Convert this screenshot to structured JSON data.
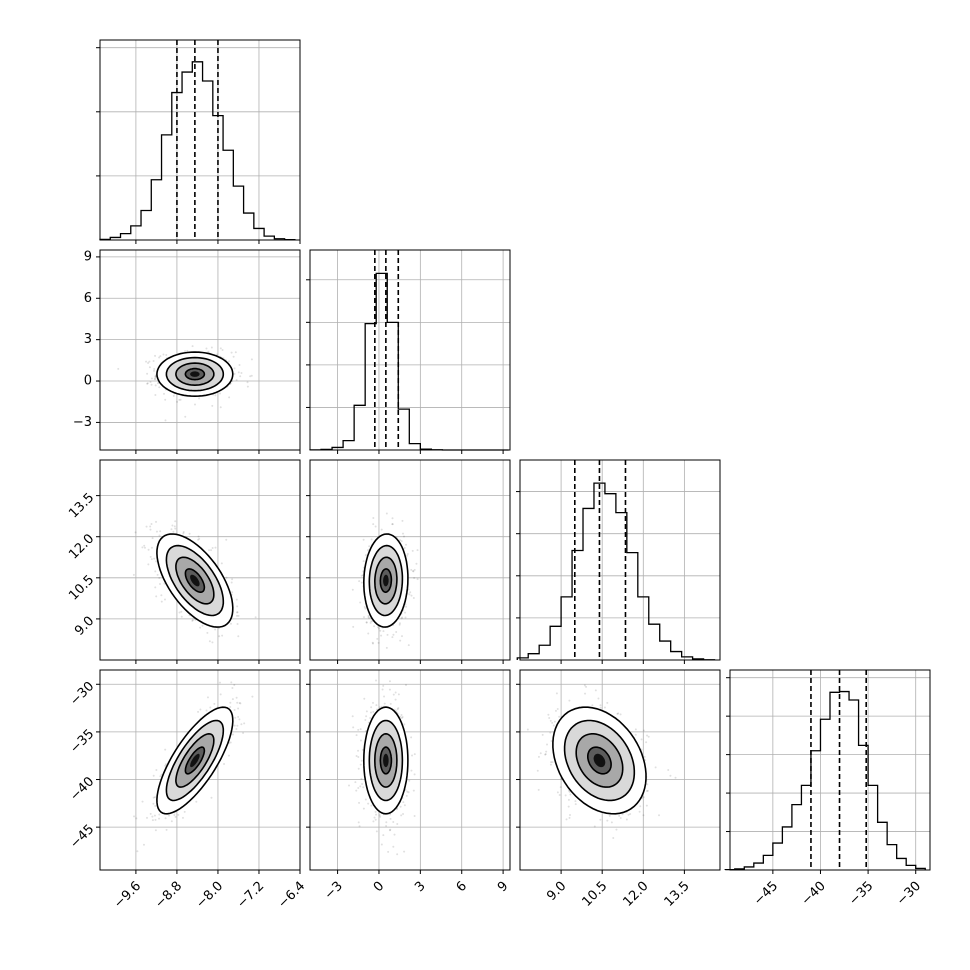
{
  "chart_data": {
    "type": "corner",
    "description_none": "",
    "params": [
      {
        "id": "p0",
        "range": [
          -10.3,
          -6.4
        ],
        "ticks": [
          -9.6,
          -8.8,
          -8.0,
          -7.2,
          -6.4
        ],
        "tick_labels": [
          "−9.6",
          "−8.8",
          "−8.0",
          "−7.2",
          "−6.4"
        ],
        "quantiles": [
          -8.8,
          -8.45,
          -8.0
        ],
        "median": -8.45,
        "sigma": 0.37
      },
      {
        "id": "p1",
        "range": [
          -5,
          9.5
        ],
        "ticks": [
          -3,
          0,
          3,
          6,
          9
        ],
        "tick_labels": [
          "−3",
          "0",
          "3",
          "6",
          "9"
        ],
        "quantiles": [
          -0.3,
          0.5,
          1.4
        ],
        "median": 0.5,
        "sigma": 0.8
      },
      {
        "id": "p2",
        "range": [
          7.5,
          14.8
        ],
        "ticks": [
          9.0,
          10.5,
          12.0,
          13.5
        ],
        "tick_labels": [
          "9.0",
          "10.5",
          "12.0",
          "13.5"
        ],
        "quantiles": [
          9.5,
          10.4,
          11.35
        ],
        "median": 10.4,
        "sigma": 0.85
      },
      {
        "id": "p3",
        "range": [
          -49.5,
          -28.5
        ],
        "ticks": [
          -45,
          -40,
          -35,
          -30
        ],
        "tick_labels": [
          "−45",
          "−40",
          "−35",
          "−30"
        ],
        "quantiles": [
          -41,
          -38,
          -35.2
        ],
        "median": -38,
        "sigma": 2.8
      }
    ],
    "histograms": [
      {
        "param": "p0",
        "edges": [
          -10.3,
          -10.1,
          -9.9,
          -9.7,
          -9.5,
          -9.3,
          -9.1,
          -8.9,
          -8.7,
          -8.5,
          -8.3,
          -8.1,
          -7.9,
          -7.7,
          -7.5,
          -7.3,
          -7.1,
          -6.9,
          -6.7,
          -6.5
        ],
        "counts": [
          5,
          20,
          50,
          110,
          230,
          470,
          820,
          1150,
          1310,
          1390,
          1240,
          970,
          700,
          420,
          210,
          90,
          30,
          10,
          3
        ],
        "ymax": 1560,
        "yticks": [
          500,
          1000,
          1500
        ]
      },
      {
        "param": "p1",
        "edges": [
          -5,
          -4.2,
          -3.4,
          -2.6,
          -1.8,
          -1.0,
          -0.2,
          0.6,
          1.4,
          2.2,
          3.0,
          3.8,
          4.6,
          5.4,
          6.2,
          7.0,
          7.8,
          8.6,
          9.4
        ],
        "counts": [
          3,
          15,
          60,
          220,
          1050,
          2970,
          4150,
          3000,
          960,
          150,
          20,
          5,
          0,
          0,
          0,
          0,
          0,
          0
        ],
        "ymax": 4700,
        "yticks": [
          1000,
          2000,
          3000,
          4000
        ]
      },
      {
        "param": "p2",
        "edges": [
          7.4,
          7.8,
          8.2,
          8.6,
          9.0,
          9.4,
          9.8,
          10.2,
          10.6,
          11.0,
          11.4,
          11.8,
          12.2,
          12.6,
          13.0,
          13.4,
          13.8,
          14.2,
          14.6
        ],
        "counts": [
          10,
          30,
          70,
          160,
          300,
          520,
          720,
          840,
          790,
          700,
          510,
          300,
          170,
          90,
          40,
          15,
          5,
          1
        ],
        "ymax": 950,
        "yticks": [
          200,
          400,
          600,
          800
        ]
      },
      {
        "param": "p3",
        "edges": [
          -50,
          -49,
          -48,
          -47,
          -46,
          -45,
          -44,
          -43,
          -42,
          -41,
          -40,
          -39,
          -38,
          -37,
          -36,
          -35,
          -34,
          -33,
          -32,
          -31,
          -30,
          -29
        ],
        "counts": [
          5,
          15,
          40,
          90,
          190,
          350,
          560,
          850,
          1100,
          1550,
          1960,
          2310,
          2320,
          2210,
          1620,
          1100,
          620,
          330,
          150,
          60,
          20
        ],
        "ymax": 2600,
        "yticks": [
          500,
          1000,
          1500,
          2000,
          2500
        ]
      }
    ],
    "pairs": [
      {
        "x": "p0",
        "y": "p1",
        "rho": 0.0
      },
      {
        "x": "p0",
        "y": "p2",
        "rho": -0.6
      },
      {
        "x": "p1",
        "y": "p2",
        "rho": 0.05
      },
      {
        "x": "p0",
        "y": "p3",
        "rho": 0.75
      },
      {
        "x": "p1",
        "y": "p3",
        "rho": 0.0
      },
      {
        "x": "p2",
        "y": "p3",
        "rho": -0.3
      }
    ],
    "contour_sigma_levels": [
      0.5,
      1.0,
      1.5,
      2.0
    ],
    "grid": true,
    "colors": {
      "ink": "#000000",
      "grid": "#b0b0b0"
    }
  }
}
